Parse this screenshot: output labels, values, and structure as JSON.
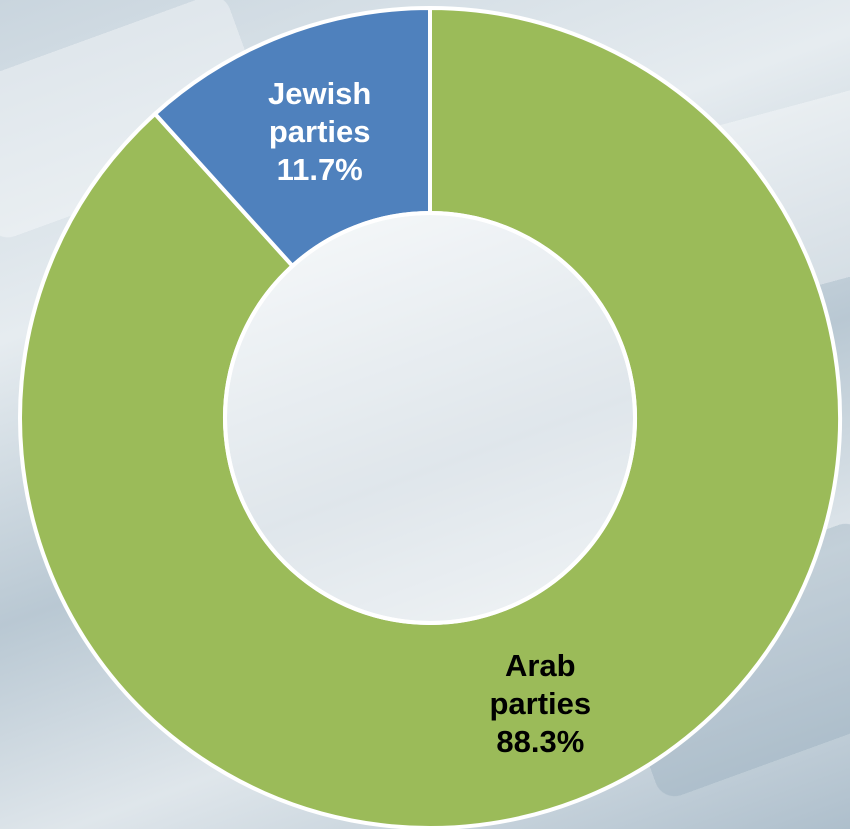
{
  "chart_data": {
    "type": "donut",
    "categories": [
      "Arab parties",
      "Jewish parties"
    ],
    "values": [
      88.3,
      11.7
    ],
    "value_labels": [
      "88.3%",
      "11.7%"
    ],
    "colors": [
      "#9bbb59",
      "#4f81bd"
    ],
    "label_colors": [
      "#000000",
      "#ffffff"
    ]
  }
}
